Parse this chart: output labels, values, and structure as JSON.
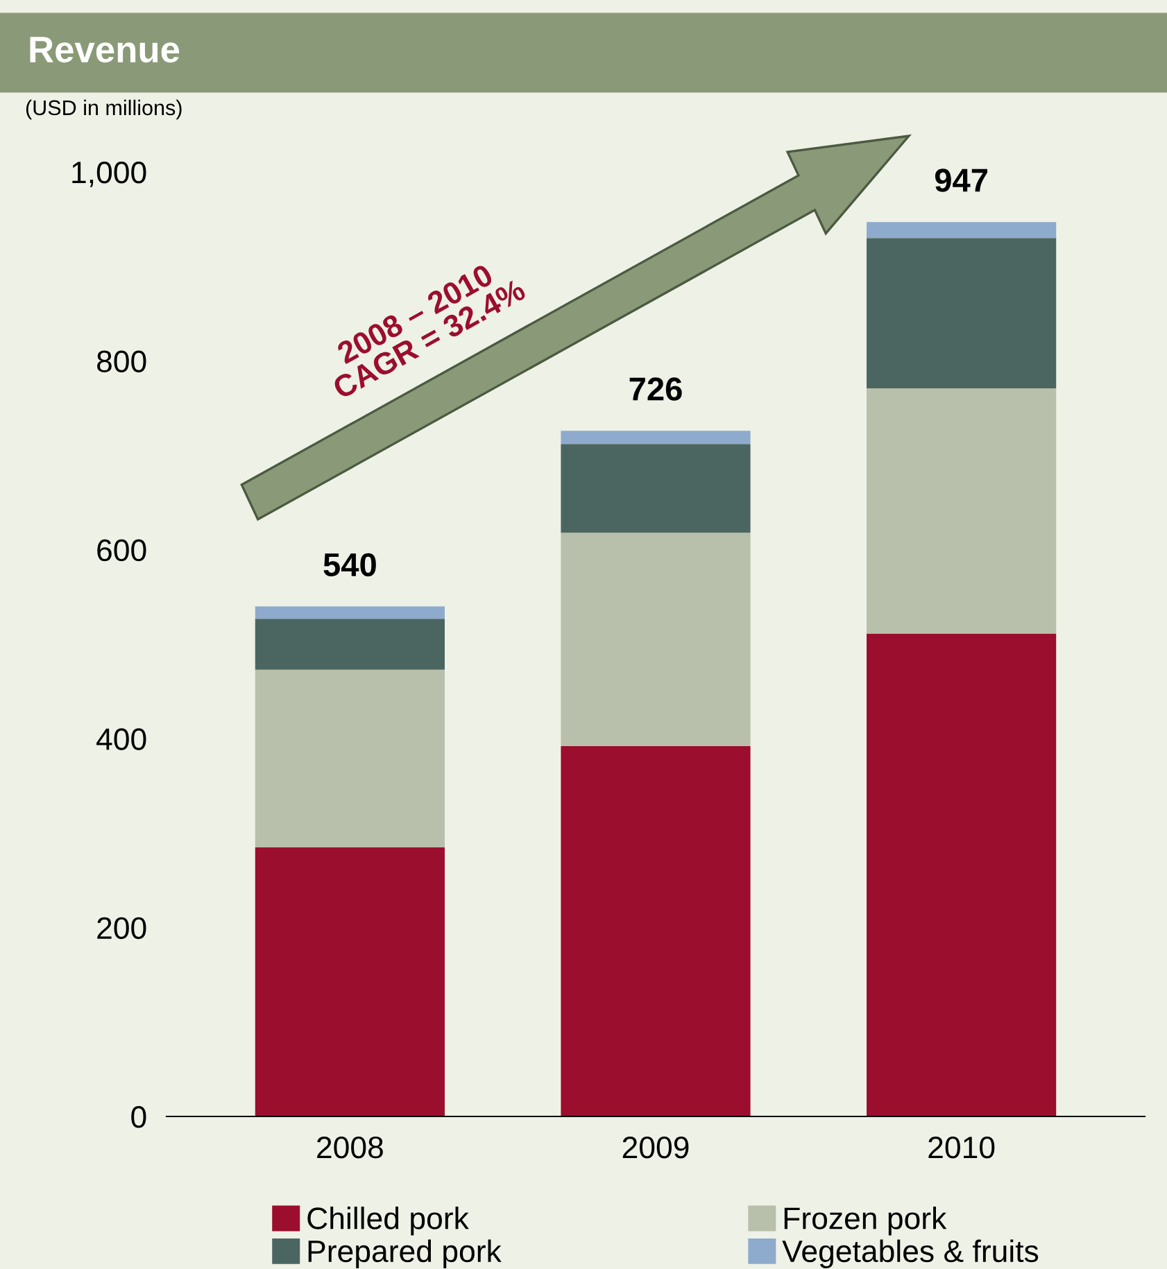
{
  "chart_data": {
    "type": "bar",
    "title": "Revenue",
    "subtitle": "(USD in millions)",
    "categories": [
      "2008",
      "2009",
      "2010"
    ],
    "stacked": true,
    "series": [
      {
        "name": "Chilled pork",
        "color": "#9b0e2e",
        "values": [
          285,
          392,
          511
        ]
      },
      {
        "name": "Frozen pork",
        "color": "#b8bfaa",
        "values": [
          188,
          226,
          260
        ]
      },
      {
        "name": "Prepared pork",
        "color": "#4b6660",
        "values": [
          54,
          94,
          159
        ]
      },
      {
        "name": "Vegetables & fruits",
        "color": "#8eaacc",
        "values": [
          13,
          14,
          17
        ]
      }
    ],
    "totals": [
      "540",
      "726",
      "947"
    ],
    "ylim": [
      0,
      1000
    ],
    "yticks": [
      0,
      200,
      400,
      600,
      800,
      {
        "value": 1000,
        "label": "1,000"
      }
    ],
    "annotations": [
      "2008 – 2010\nCAGR = 32.4%"
    ],
    "legend": "bottom",
    "grid": false
  }
}
